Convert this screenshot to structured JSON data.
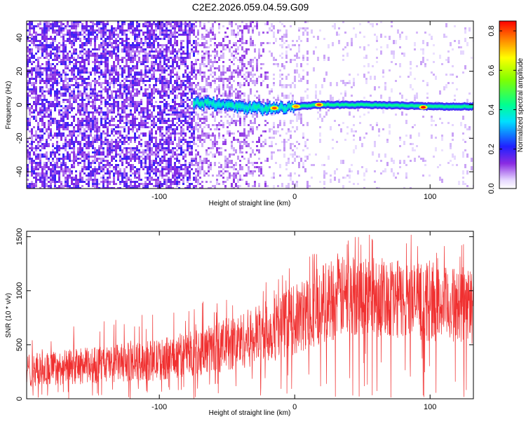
{
  "chart_data": [
    {
      "type": "heatmap",
      "title": "C2E2.2026.059.04.59.G09",
      "xlabel": "Height of straight line (km)",
      "ylabel": "Frequency (Hz)",
      "xlim": [
        -198,
        132
      ],
      "ylim": [
        -50,
        50
      ],
      "x_ticks": [
        -100,
        0,
        100
      ],
      "y_ticks": [
        -40,
        -20,
        0,
        20,
        40
      ],
      "colorbar": {
        "label": "Normalized spectral amplitude",
        "range": [
          0.0,
          0.85
        ],
        "ticks": [
          0.0,
          0.2,
          0.4,
          0.6,
          0.8
        ]
      },
      "features": {
        "noise_region_x": [
          -198,
          -75
        ],
        "signal_start_x": -75,
        "signal_track_freq_hz": [
          [
            -72,
            1.5
          ],
          [
            -60,
            0.5
          ],
          [
            -45,
            -1
          ],
          [
            -30,
            -2
          ],
          [
            -15,
            -2
          ],
          [
            0,
            -1
          ],
          [
            20,
            0
          ],
          [
            50,
            0
          ],
          [
            80,
            -0.5
          ],
          [
            100,
            -1
          ],
          [
            132,
            -1
          ]
        ],
        "peak_points": [
          {
            "x": -15,
            "y": -2,
            "amplitude": 0.8
          },
          {
            "x": 1,
            "y": -1,
            "amplitude": 0.75
          },
          {
            "x": 18,
            "y": 0,
            "amplitude": 0.8
          },
          {
            "x": 95,
            "y": -1.5,
            "amplitude": 0.85
          }
        ]
      }
    },
    {
      "type": "line",
      "xlabel": "Height of straight line (km)",
      "ylabel": "SNR (10 * v/v)",
      "xlim": [
        -198,
        132
      ],
      "ylim": [
        0,
        1550
      ],
      "x_ticks": [
        -100,
        0,
        100
      ],
      "y_ticks": [
        0,
        500,
        1000,
        1500
      ],
      "color": "#f03030",
      "envelope": {
        "x": [
          -198,
          -150,
          -100,
          -60,
          -30,
          0,
          25,
          50,
          80,
          110,
          132
        ],
        "low": [
          50,
          80,
          100,
          150,
          200,
          280,
          400,
          450,
          420,
          400,
          380
        ],
        "high": [
          420,
          480,
          550,
          700,
          850,
          1050,
          1300,
          1350,
          1280,
          1220,
          1200
        ]
      }
    }
  ]
}
